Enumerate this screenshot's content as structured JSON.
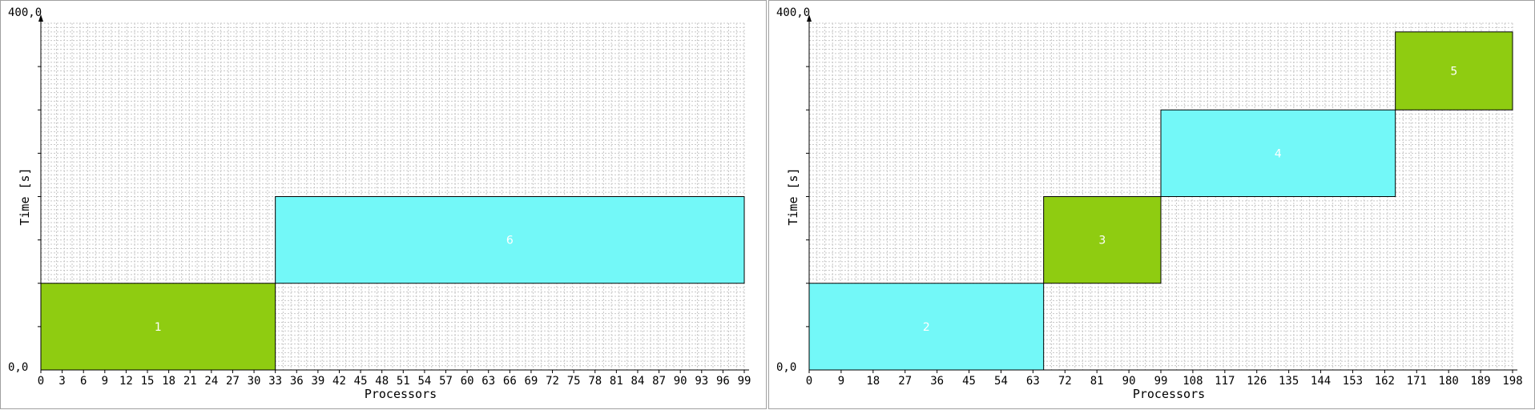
{
  "colors": {
    "green": "#8fcc11",
    "cyan": "#73f8f8",
    "grid": "#c8c8c8",
    "border": "#000000"
  },
  "chart_data": [
    {
      "type": "bar",
      "xlabel": "Processors",
      "ylabel": "Time [s]",
      "ylim": [
        0,
        400
      ],
      "ymin_label": "0,0",
      "ymax_label": "400,0",
      "xlim": [
        0,
        99
      ],
      "x_ticks": [
        0,
        3,
        6,
        9,
        12,
        15,
        18,
        21,
        24,
        27,
        30,
        33,
        36,
        39,
        42,
        45,
        48,
        51,
        54,
        57,
        60,
        63,
        66,
        69,
        72,
        75,
        78,
        81,
        84,
        87,
        90,
        93,
        96,
        99
      ],
      "grid": true,
      "blocks": [
        {
          "label": "1",
          "x0": 0,
          "x1": 33,
          "y0": 0,
          "y1": 100,
          "color": "green"
        },
        {
          "label": "6",
          "x0": 33,
          "x1": 99,
          "y0": 100,
          "y1": 200,
          "color": "cyan"
        }
      ]
    },
    {
      "type": "bar",
      "xlabel": "Processors",
      "ylabel": "Time [s]",
      "ylim": [
        0,
        400
      ],
      "ymin_label": "0,0",
      "ymax_label": "400,0",
      "xlim": [
        0,
        198
      ],
      "x_ticks": [
        0,
        9,
        18,
        27,
        36,
        45,
        54,
        63,
        72,
        81,
        90,
        99,
        108,
        117,
        126,
        135,
        144,
        153,
        162,
        171,
        180,
        189,
        198
      ],
      "grid": true,
      "blocks": [
        {
          "label": "2",
          "x0": 0,
          "x1": 66,
          "y0": 0,
          "y1": 100,
          "color": "cyan"
        },
        {
          "label": "3",
          "x0": 66,
          "x1": 99,
          "y0": 100,
          "y1": 200,
          "color": "green"
        },
        {
          "label": "4",
          "x0": 99,
          "x1": 165,
          "y0": 200,
          "y1": 300,
          "color": "cyan"
        },
        {
          "label": "5",
          "x0": 165,
          "x1": 198,
          "y0": 300,
          "y1": 390,
          "color": "green"
        }
      ]
    }
  ]
}
